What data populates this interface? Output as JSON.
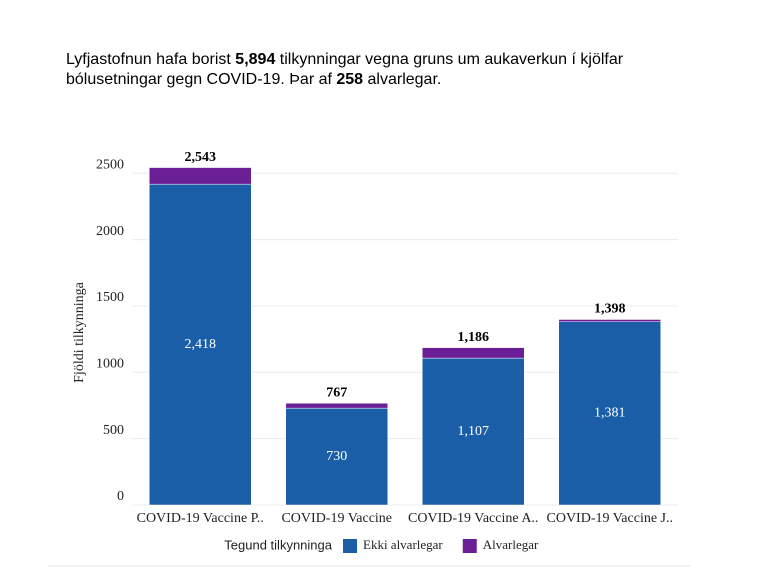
{
  "chart_data": {
    "type": "stacked_bar",
    "title_parts": [
      {
        "text": "Lyfjastofnun hafa borist ",
        "bold": false
      },
      {
        "text": "5,894",
        "bold": true
      },
      {
        "text": " tilkynningar vegna gruns um aukaverkun í kjölfar bólusetningar gegn COVID-19. Þar af ",
        "bold": false
      },
      {
        "text": "258",
        "bold": true
      },
      {
        "text": " alvarlegar.",
        "bold": false
      }
    ],
    "y_label": "Fjöldi tilkynninga",
    "legend_title": "Tegund tilkynninga",
    "categories": [
      "COVID-19 Vaccine P..",
      "COVID-19 Vaccine",
      "COVID-19 Vaccine A..",
      "COVID-19 Vaccine J.."
    ],
    "series": [
      {
        "name": "Ekki alvarlegar",
        "color": "#1a5ea8",
        "values": [
          2418,
          730,
          1107,
          1381
        ],
        "value_labels": [
          "2,418",
          "730",
          "1,107",
          "1,381"
        ]
      },
      {
        "name": "Alvarlegar",
        "color": "#6b1f96",
        "values": [
          125,
          37,
          79,
          17
        ]
      }
    ],
    "total_labels": [
      "2,543",
      "767",
      "1,186",
      "1,398"
    ],
    "ylim": [
      0,
      2600
    ],
    "yticks": [
      0,
      500,
      1000,
      1500,
      2000,
      2500
    ],
    "grid": true
  }
}
